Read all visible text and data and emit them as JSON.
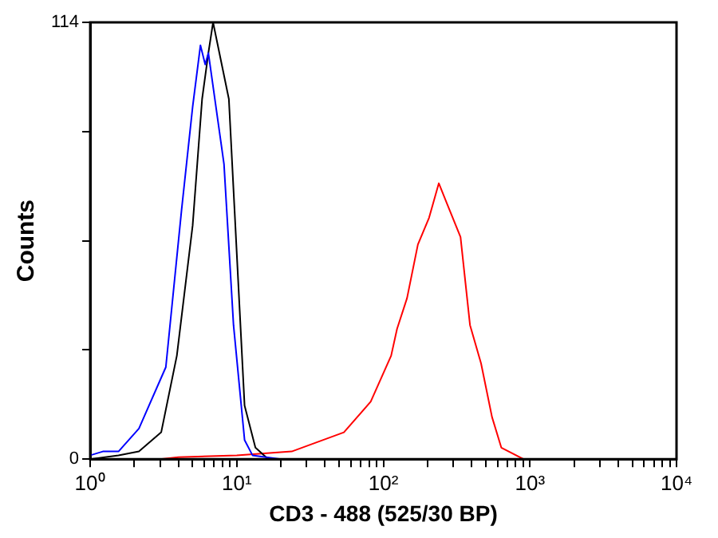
{
  "chart_data": {
    "type": "line",
    "xlabel": "CD3 - 488 (525/30 BP)",
    "ylabel": "Counts",
    "log": "x",
    "grid": false,
    "legend": false,
    "marker": "none",
    "line_style": "solid",
    "xlim": [
      1,
      10000
    ],
    "ylim": [
      0,
      114
    ],
    "xticks": [
      {
        "value": 1,
        "label": "10⁰"
      },
      {
        "value": 2,
        "label": null
      },
      {
        "value": 3,
        "label": null
      },
      {
        "value": 4,
        "label": null
      },
      {
        "value": 5,
        "label": null
      },
      {
        "value": 6,
        "label": null
      },
      {
        "value": 7,
        "label": null
      },
      {
        "value": 8,
        "label": null
      },
      {
        "value": 9,
        "label": null
      },
      {
        "value": 10,
        "label": "10¹"
      },
      {
        "value": 20,
        "label": null
      },
      {
        "value": 30,
        "label": null
      },
      {
        "value": 40,
        "label": null
      },
      {
        "value": 50,
        "label": null
      },
      {
        "value": 60,
        "label": null
      },
      {
        "value": 70,
        "label": null
      },
      {
        "value": 80,
        "label": null
      },
      {
        "value": 90,
        "label": null
      },
      {
        "value": 100,
        "label": "10²"
      },
      {
        "value": 200,
        "label": null
      },
      {
        "value": 300,
        "label": null
      },
      {
        "value": 400,
        "label": null
      },
      {
        "value": 500,
        "label": null
      },
      {
        "value": 600,
        "label": null
      },
      {
        "value": 700,
        "label": null
      },
      {
        "value": 800,
        "label": null
      },
      {
        "value": 900,
        "label": null
      },
      {
        "value": 1000,
        "label": "10³"
      },
      {
        "value": 2000,
        "label": null
      },
      {
        "value": 3000,
        "label": null
      },
      {
        "value": 4000,
        "label": null
      },
      {
        "value": 5000,
        "label": null
      },
      {
        "value": 6000,
        "label": null
      },
      {
        "value": 7000,
        "label": null
      },
      {
        "value": 8000,
        "label": null
      },
      {
        "value": 9000,
        "label": null
      },
      {
        "value": 10000,
        "label": "10⁴"
      }
    ],
    "yticks": [
      0,
      {
        "value": 28.5,
        "label": null
      },
      {
        "value": 57,
        "label": null
      },
      {
        "value": 85.5,
        "label": null
      },
      114
    ],
    "series": [
      {
        "color": "#0000ff",
        "x": [
          1,
          1.22,
          1.56,
          2.15,
          3.28,
          4.2,
          5,
          5.65,
          6.09,
          6.4,
          8.18,
          9.5,
          11.3,
          12.8,
          20
        ],
        "values": [
          1,
          2,
          2,
          8,
          24,
          65,
          92,
          108,
          103,
          106,
          77,
          35,
          5,
          1,
          0
        ]
      },
      {
        "color": "#000000",
        "x": [
          1,
          1.56,
          2.15,
          3.05,
          3.9,
          5,
          5.8,
          6.4,
          6.89,
          8.83,
          11.3,
          13.4,
          16.4,
          25
        ],
        "values": [
          0,
          1,
          2,
          7,
          27,
          61,
          94,
          106,
          114,
          94,
          14,
          3,
          0,
          0
        ]
      },
      {
        "color": "#ff0000",
        "x": [
          3,
          4,
          10,
          23.7,
          53.8,
          82,
          113,
          124,
          145,
          172,
          205,
          239,
          283,
          336,
          390,
          464,
          551,
          638,
          904
        ],
        "values": [
          0,
          0.5,
          1,
          2,
          7,
          15,
          27,
          34,
          42,
          56,
          63,
          72,
          65,
          58,
          35,
          25,
          11,
          3,
          0
        ]
      }
    ]
  }
}
